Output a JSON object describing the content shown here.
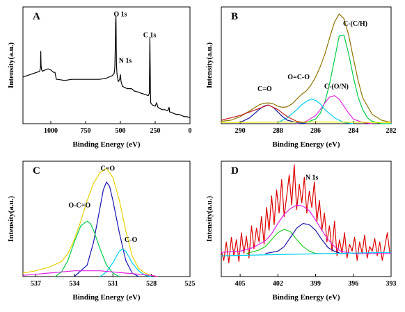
{
  "figure": {
    "panels": [
      "A",
      "B",
      "C",
      "D"
    ]
  },
  "chart_data": [
    {
      "panel": "A",
      "type": "line",
      "xlabel": "Binding Energy (eV)",
      "ylabel": "Intensity(a.u.)",
      "xlim": [
        1200,
        0
      ],
      "ylim": [
        0,
        100
      ],
      "xticks": [
        1000,
        750,
        500,
        250,
        0
      ],
      "x_reversed": true,
      "show_y_ticks": false,
      "annotations": [
        {
          "text": "O 1s",
          "x": 500,
          "y": 92
        },
        {
          "text": "N 1s",
          "x": 465,
          "y": 52
        },
        {
          "text": "C 1s",
          "x": 290,
          "y": 74
        }
      ],
      "series": [
        {
          "color": "#000000",
          "x": [
            1200,
            1150,
            1100,
            1080,
            1074,
            1072,
            1070,
            1066,
            1060,
            1040,
            1020,
            1000,
            980,
            970,
            960,
            950,
            900,
            850,
            800,
            750,
            700,
            650,
            600,
            560,
            545,
            540,
            536,
            534,
            532,
            531,
            530,
            528,
            524,
            515,
            505,
            500,
            495,
            485,
            470,
            450,
            420,
            400,
            370,
            350,
            320,
            300,
            292,
            290,
            288,
            286,
            284,
            282,
            278,
            270,
            250,
            240,
            230,
            215,
            200,
            180,
            160,
            150,
            148,
            146,
            140,
            120,
            100,
            80,
            60,
            40,
            20,
            0
          ],
          "y": [
            40,
            42,
            44,
            45,
            48,
            62,
            50,
            46,
            45,
            46,
            47,
            46,
            44,
            44,
            38,
            38,
            37,
            38,
            38,
            38,
            38,
            38,
            39,
            41,
            43,
            48,
            70,
            86,
            92,
            86,
            68,
            50,
            42,
            36,
            38,
            42,
            36,
            32,
            31,
            30,
            30,
            28,
            27,
            26,
            25,
            24,
            26,
            50,
            74,
            50,
            26,
            18,
            17,
            16,
            15,
            18,
            14,
            13,
            12,
            12,
            11,
            14,
            12,
            10,
            10,
            9,
            8,
            8,
            7,
            6,
            6,
            5
          ]
        }
      ]
    },
    {
      "panel": "B",
      "type": "line",
      "xlabel": "Binding Energy (eV)",
      "ylabel": "Intensity(a.u.)",
      "xlim": [
        291,
        282
      ],
      "ylim": [
        0,
        100
      ],
      "xticks": [
        290,
        288,
        286,
        284,
        282
      ],
      "x_reversed": true,
      "show_y_ticks": false,
      "annotations": [
        {
          "text": "C-(C/H)",
          "x": 283.9,
          "y": 84
        },
        {
          "text": "O=C-O",
          "x": 286.9,
          "y": 38
        },
        {
          "text": "C-(O/N)",
          "x": 284.9,
          "y": 30
        },
        {
          "text": "C=O",
          "x": 288.7,
          "y": 28
        }
      ],
      "series": [
        {
          "color": "#8B7500",
          "x": [
            291,
            290.5,
            290,
            289.5,
            289,
            288.75,
            288.5,
            288.25,
            288,
            287.75,
            287.5,
            287.25,
            287,
            286.75,
            286.5,
            286.25,
            286,
            285.75,
            285.5,
            285.25,
            285,
            284.75,
            284.5,
            284.25,
            284,
            283.75,
            283.5,
            283,
            282.5,
            282
          ],
          "y": [
            2,
            3,
            6,
            11,
            16,
            17.5,
            17.8,
            17,
            15,
            14,
            14.5,
            17,
            21,
            25,
            28,
            33,
            40,
            49,
            60,
            74,
            87,
            94,
            90,
            76,
            56,
            37,
            22,
            8,
            3,
            1
          ]
        },
        {
          "color": "#00CC44",
          "x": [
            287,
            286.5,
            286,
            285.75,
            285.5,
            285.25,
            285,
            284.75,
            284.5,
            284.25,
            284,
            283.75,
            283.5,
            283.25,
            283,
            282.5,
            282
          ],
          "y": [
            0,
            1,
            4,
            9,
            19,
            35,
            55,
            75,
            76,
            60,
            40,
            23,
            12,
            5,
            2,
            0,
            0
          ]
        },
        {
          "color": "#E020E0",
          "x": [
            287,
            286.5,
            286,
            285.75,
            285.5,
            285.25,
            285,
            284.75,
            284.5,
            284.25,
            284,
            283.5,
            283
          ],
          "y": [
            0,
            2,
            7,
            12,
            18,
            23,
            24,
            21,
            15,
            9,
            4,
            1,
            0
          ]
        },
        {
          "color": "#00CCEE",
          "x": [
            288,
            287.5,
            287,
            286.75,
            286.5,
            286.25,
            286,
            285.75,
            285.5,
            285,
            284.5,
            284
          ],
          "y": [
            1,
            5,
            12,
            16,
            19,
            21,
            20,
            17,
            12,
            5,
            1,
            0
          ]
        },
        {
          "color": "#1414A0",
          "x": [
            290,
            289.5,
            289,
            288.75,
            288.5,
            288.25,
            288,
            287.75,
            287.5,
            287,
            286.5
          ],
          "y": [
            1,
            5,
            12,
            15,
            16,
            14,
            10,
            6,
            3,
            1,
            0
          ]
        },
        {
          "color": "#C01A1A",
          "x": [
            291,
            290,
            289,
            288.5,
            288,
            287.5,
            287,
            286.5
          ],
          "y": [
            3,
            7,
            13,
            16,
            12,
            6,
            2,
            1
          ]
        },
        {
          "color": "#E8E800",
          "x": [
            291,
            286,
            282
          ],
          "y": [
            1,
            1.5,
            1
          ]
        }
      ]
    },
    {
      "panel": "C",
      "type": "line",
      "xlabel": "Binding Energy (eV)",
      "ylabel": "Intensity(a.u.)",
      "xlim": [
        538,
        525
      ],
      "ylim": [
        0,
        100
      ],
      "xticks": [
        537,
        534,
        531,
        528,
        525
      ],
      "x_reversed": true,
      "show_y_ticks": false,
      "annotations": [
        {
          "text": "C=O",
          "x": 531.4,
          "y": 92
        },
        {
          "text": "O-C=O",
          "x": 533.6,
          "y": 60
        },
        {
          "text": "C-O",
          "x": 529.6,
          "y": 30
        }
      ],
      "series": [
        {
          "color": "#E8D000",
          "x": [
            538,
            537,
            536,
            535,
            534.5,
            534,
            533.5,
            533,
            532.5,
            532,
            531.5,
            531,
            530.5,
            530,
            529.5,
            529,
            528.5,
            528,
            527.5
          ],
          "y": [
            3,
            5,
            8,
            13,
            20,
            32,
            48,
            66,
            81,
            90,
            94,
            86,
            66,
            40,
            18,
            7,
            3,
            1,
            0
          ]
        },
        {
          "color": "#1414B0",
          "x": [
            534,
            533,
            532.5,
            532,
            531.75,
            531.5,
            531.25,
            531,
            530.5,
            530,
            529.5,
            529
          ],
          "y": [
            0,
            10,
            30,
            60,
            75,
            82,
            78,
            66,
            38,
            14,
            3,
            0
          ]
        },
        {
          "color": "#00CC44",
          "x": [
            535.5,
            535,
            534.5,
            534,
            533.5,
            533,
            532.75,
            532.5,
            532,
            531.5,
            531,
            530.5
          ],
          "y": [
            0,
            4,
            14,
            30,
            44,
            48,
            46,
            40,
            24,
            10,
            3,
            0
          ]
        },
        {
          "color": "#00CCEE",
          "x": [
            532,
            531.5,
            531,
            530.5,
            530.25,
            530,
            529.5,
            529,
            528.5,
            528
          ],
          "y": [
            0,
            4,
            12,
            22,
            24,
            22,
            12,
            5,
            1,
            0
          ]
        },
        {
          "color": "#E020E0",
          "x": [
            538,
            537,
            536,
            535,
            534,
            533,
            532,
            531,
            530,
            529,
            528,
            527.5
          ],
          "y": [
            1,
            2,
            3,
            4,
            5,
            5,
            5,
            4,
            3,
            2,
            1,
            0
          ]
        }
      ]
    },
    {
      "panel": "D",
      "type": "line",
      "xlabel": "Binding Energy (eV)",
      "ylabel": "Intensity(a.u.)",
      "xlim": [
        406.5,
        393
      ],
      "ylim": [
        0,
        100
      ],
      "xticks": [
        405,
        402,
        399,
        396,
        393
      ],
      "x_reversed": true,
      "show_y_ticks": false,
      "annotations": [
        {
          "text": "N 1s",
          "x": 399.3,
          "y": 84
        }
      ],
      "series": [
        {
          "color": "#DD0000",
          "x": [
            406.5,
            406.3,
            406.1,
            405.9,
            405.7,
            405.5,
            405.3,
            405.1,
            404.9,
            404.7,
            404.5,
            404.3,
            404.1,
            403.9,
            403.7,
            403.5,
            403.3,
            403.1,
            402.9,
            402.7,
            402.5,
            402.3,
            402.1,
            401.9,
            401.7,
            401.5,
            401.3,
            401.1,
            400.9,
            400.7,
            400.5,
            400.3,
            400.1,
            399.9,
            399.7,
            399.5,
            399.3,
            399.1,
            398.9,
            398.7,
            398.5,
            398.3,
            398.1,
            397.9,
            397.7,
            397.5,
            397.3,
            397.1,
            396.9,
            396.7,
            396.5,
            396.3,
            396.1,
            395.9,
            395.7,
            395.5,
            395.3,
            395.1,
            394.9,
            394.7,
            394.5,
            394.3,
            394.1,
            393.9,
            393.7,
            393.5,
            393.3,
            393.1
          ],
          "y": [
            22,
            14,
            30,
            12,
            34,
            18,
            32,
            13,
            38,
            20,
            35,
            16,
            44,
            24,
            42,
            30,
            52,
            28,
            60,
            40,
            70,
            45,
            75,
            55,
            84,
            52,
            70,
            88,
            62,
            97,
            58,
            80,
            64,
            86,
            55,
            74,
            60,
            82,
            48,
            66,
            40,
            55,
            30,
            44,
            22,
            48,
            18,
            32,
            20,
            38,
            16,
            28,
            22,
            34,
            14,
            30,
            20,
            36,
            16,
            26,
            22,
            33,
            18,
            30,
            14,
            26,
            38,
            20
          ]
        },
        {
          "color": "#E020E0",
          "x": [
            406.5,
            405,
            404,
            403,
            402.5,
            402,
            401.5,
            401,
            400.5,
            400,
            399.5,
            399,
            398.5,
            398,
            397.5,
            397,
            396,
            395,
            393
          ],
          "y": [
            21,
            22,
            25,
            31,
            37,
            46,
            54,
            59,
            62,
            61,
            57,
            49,
            40,
            32,
            26,
            22,
            20,
            20,
            20
          ]
        },
        {
          "color": "#22CC22",
          "x": [
            404.5,
            403.5,
            403,
            402.5,
            402,
            401.5,
            401,
            400.5,
            400,
            399.5,
            399,
            398.5
          ],
          "y": [
            20,
            23,
            26,
            32,
            38,
            41,
            39,
            32,
            26,
            22,
            20,
            20
          ]
        },
        {
          "color": "#1414A0",
          "x": [
            403,
            402,
            401.5,
            401,
            400.5,
            400,
            399.5,
            399,
            398.5,
            398,
            397.5,
            397,
            396.5
          ],
          "y": [
            20,
            22,
            26,
            34,
            42,
            46,
            45,
            40,
            32,
            25,
            22,
            20,
            20
          ]
        },
        {
          "color": "#00CCEE",
          "x": [
            406.5,
            400,
            393
          ],
          "y": [
            18,
            19.5,
            21
          ]
        }
      ]
    }
  ]
}
